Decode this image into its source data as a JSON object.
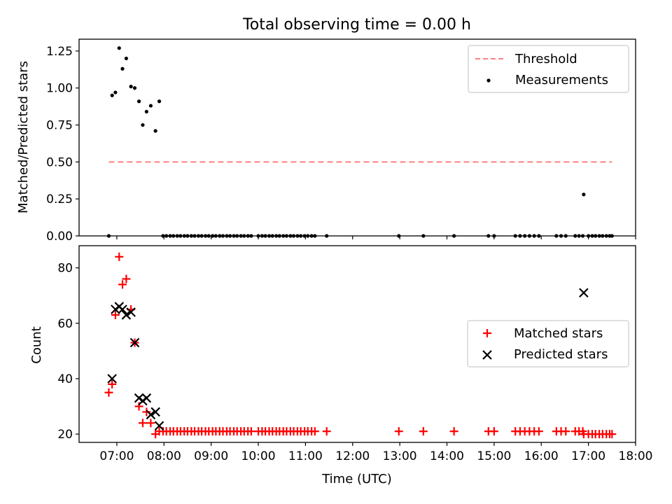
{
  "chart_data": [
    {
      "type": "scatter",
      "title": "Total observing time = 0.00 h",
      "xlabel": "",
      "ylabel": "Matched/Predicted stars",
      "x_unit": "hour (UTC)",
      "xlim": [
        6.2,
        18.0
      ],
      "ylim": [
        0.0,
        1.33
      ],
      "yticks": [
        "0.00",
        "0.25",
        "0.50",
        "0.75",
        "1.00",
        "1.25"
      ],
      "legend_position": "top-right",
      "grid": false,
      "threshold": {
        "name": "Threshold",
        "x": [
          6.83,
          17.5
        ],
        "y": 0.5,
        "color": "#ff7f7f",
        "style": "dashed"
      },
      "series": [
        {
          "name": "Measurements",
          "color": "#000000",
          "x": [
            6.83,
            6.9,
            6.97,
            7.05,
            7.12,
            7.2,
            7.3,
            7.38,
            7.47,
            7.55,
            7.63,
            7.72,
            7.82,
            7.9,
            7.98,
            8.05,
            8.13,
            8.2,
            8.28,
            8.35,
            8.43,
            8.5,
            8.58,
            8.65,
            8.73,
            8.8,
            8.88,
            8.95,
            9.03,
            9.1,
            9.18,
            9.25,
            9.33,
            9.4,
            9.48,
            9.55,
            9.63,
            9.7,
            9.78,
            9.85,
            10.0,
            10.08,
            10.15,
            10.23,
            10.3,
            10.38,
            10.45,
            10.53,
            10.6,
            10.68,
            10.75,
            10.83,
            10.9,
            10.98,
            11.05,
            11.13,
            11.2,
            11.45,
            12.98,
            13.5,
            14.15,
            14.88,
            15.0,
            15.45,
            15.55,
            15.65,
            15.75,
            15.85,
            15.95,
            16.32,
            16.42,
            16.52,
            16.72,
            16.8,
            16.88,
            16.9,
            17.0,
            17.08,
            17.15,
            17.23,
            17.3,
            17.38,
            17.45,
            17.5
          ],
          "y": [
            0.0,
            0.95,
            0.97,
            1.27,
            1.13,
            1.2,
            1.01,
            1.0,
            0.91,
            0.75,
            0.84,
            0.88,
            0.71,
            0.91,
            0.0,
            0.0,
            0.0,
            0.0,
            0.0,
            0.0,
            0.0,
            0.0,
            0.0,
            0.0,
            0.0,
            0.0,
            0.0,
            0.0,
            0.0,
            0.0,
            0.0,
            0.0,
            0.0,
            0.0,
            0.0,
            0.0,
            0.0,
            0.0,
            0.0,
            0.0,
            0.0,
            0.0,
            0.0,
            0.0,
            0.0,
            0.0,
            0.0,
            0.0,
            0.0,
            0.0,
            0.0,
            0.0,
            0.0,
            0.0,
            0.0,
            0.0,
            0.0,
            0.0,
            0.0,
            0.0,
            0.0,
            0.0,
            0.0,
            0.0,
            0.0,
            0.0,
            0.0,
            0.0,
            0.0,
            0.0,
            0.0,
            0.0,
            0.0,
            0.0,
            0.0,
            0.28,
            0.0,
            0.0,
            0.0,
            0.0,
            0.0,
            0.0,
            0.0,
            0.0
          ]
        }
      ]
    },
    {
      "type": "scatter",
      "title": "",
      "xlabel": "Time (UTC)",
      "ylabel": "Count",
      "x_unit": "hour (UTC)",
      "xlim": [
        6.2,
        18.0
      ],
      "ylim": [
        17,
        88
      ],
      "yticks": [
        "20",
        "40",
        "60",
        "80"
      ],
      "xticks": [
        "07:00",
        "08:00",
        "09:00",
        "10:00",
        "11:00",
        "12:00",
        "13:00",
        "14:00",
        "15:00",
        "16:00",
        "17:00",
        "18:00"
      ],
      "legend_position": "center-right",
      "grid": false,
      "series": [
        {
          "name": "Matched stars",
          "color": "#ff0000",
          "marker": "+",
          "x": [
            6.83,
            6.9,
            6.97,
            7.05,
            7.12,
            7.2,
            7.3,
            7.38,
            7.47,
            7.55,
            7.63,
            7.72,
            7.82,
            7.9,
            7.98,
            8.05,
            8.13,
            8.2,
            8.28,
            8.35,
            8.43,
            8.5,
            8.58,
            8.65,
            8.73,
            8.8,
            8.88,
            8.95,
            9.03,
            9.1,
            9.18,
            9.25,
            9.33,
            9.4,
            9.48,
            9.55,
            9.63,
            9.7,
            9.78,
            9.85,
            10.0,
            10.08,
            10.15,
            10.23,
            10.3,
            10.38,
            10.45,
            10.53,
            10.6,
            10.68,
            10.75,
            10.83,
            10.9,
            10.98,
            11.05,
            11.13,
            11.2,
            11.45,
            12.98,
            13.5,
            14.15,
            14.88,
            15.0,
            15.45,
            15.55,
            15.65,
            15.75,
            15.85,
            15.95,
            16.32,
            16.42,
            16.52,
            16.72,
            16.8,
            16.88,
            16.9,
            17.0,
            17.08,
            17.15,
            17.23,
            17.3,
            17.38,
            17.45,
            17.5
          ],
          "y": [
            35,
            38,
            63,
            84,
            74,
            76,
            65,
            53,
            30,
            24,
            28,
            24,
            20,
            21,
            21,
            21,
            21,
            21,
            21,
            21,
            21,
            21,
            21,
            21,
            21,
            21,
            21,
            21,
            21,
            21,
            21,
            21,
            21,
            21,
            21,
            21,
            21,
            21,
            21,
            21,
            21,
            21,
            21,
            21,
            21,
            21,
            21,
            21,
            21,
            21,
            21,
            21,
            21,
            21,
            21,
            21,
            21,
            21,
            21,
            21,
            21,
            21,
            21,
            21,
            21,
            21,
            21,
            21,
            21,
            21,
            21,
            21,
            21,
            21,
            21,
            20,
            20,
            20,
            20,
            20,
            20,
            20,
            20,
            20
          ]
        },
        {
          "name": "Predicted stars",
          "color": "#000000",
          "marker": "x",
          "x": [
            6.9,
            6.97,
            7.05,
            7.12,
            7.2,
            7.3,
            7.38,
            7.47,
            7.55,
            7.63,
            7.72,
            7.82,
            7.9,
            16.9
          ],
          "y": [
            40,
            65,
            66,
            65,
            63,
            64,
            53,
            33,
            32,
            33,
            27,
            28,
            23,
            71
          ]
        }
      ]
    }
  ]
}
